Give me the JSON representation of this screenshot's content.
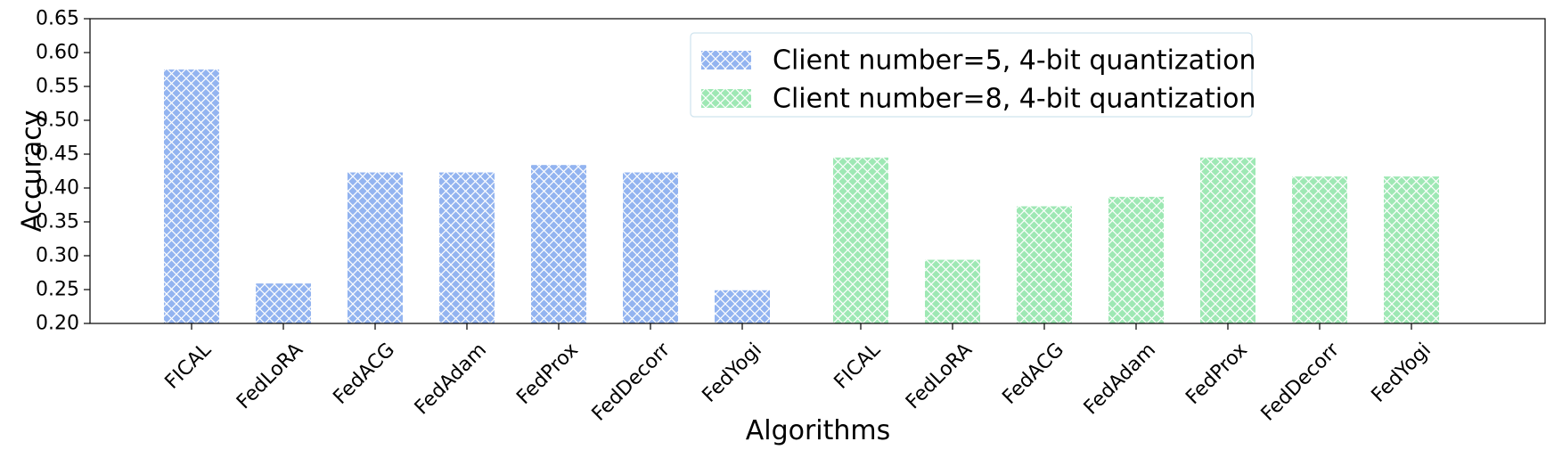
{
  "chart_data": {
    "type": "bar",
    "title": "",
    "xlabel": "Algorithms",
    "ylabel": "Accuracy",
    "ylim": [
      0.2,
      0.65
    ],
    "yticks": [
      "0.20",
      "0.25",
      "0.30",
      "0.35",
      "0.40",
      "0.45",
      "0.50",
      "0.55",
      "0.60",
      "0.65"
    ],
    "grid": false,
    "legend_position": "top-center",
    "hatch": "crosshatch",
    "series": [
      {
        "name": "Client number=5, 4-bit quantization",
        "color": "#93B4F0",
        "categories": [
          "FICAL",
          "FedLoRA",
          "FedACG",
          "FedAdam",
          "FedProx",
          "FedDecorr",
          "FedYogi"
        ],
        "values": [
          0.575,
          0.259,
          0.423,
          0.423,
          0.434,
          0.423,
          0.249
        ]
      },
      {
        "name": "Client number=8, 4-bit quantization",
        "color": "#9EE8B4",
        "categories": [
          "FICAL",
          "FedLoRA",
          "FedACG",
          "FedAdam",
          "FedProx",
          "FedDecorr",
          "FedYogi"
        ],
        "values": [
          0.445,
          0.294,
          0.373,
          0.387,
          0.445,
          0.417,
          0.417
        ]
      }
    ]
  }
}
